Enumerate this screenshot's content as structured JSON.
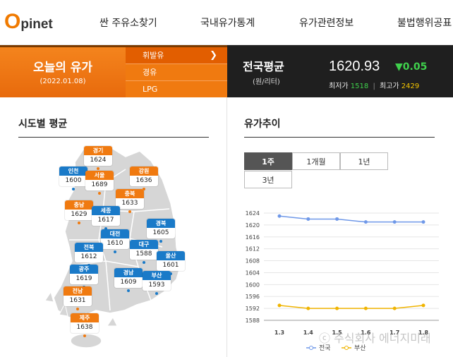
{
  "logo": {
    "o": "O",
    "rest": "pinet"
  },
  "nav": [
    "싼 주유소찾기",
    "국내유가통계",
    "유가관련정보",
    "불법행위공표"
  ],
  "hero": {
    "title": "오늘의 유가",
    "date": "(2022.01.08)",
    "fuel_tabs": [
      "휘발유",
      "경유",
      "LPG"
    ],
    "national_label": "전국평균",
    "national_unit": "(원/리터)",
    "national_price": "1620.93",
    "change": "▼0.05",
    "min_label": "최저가",
    "min_value": "1518",
    "max_label": "최고가",
    "max_value": "2429",
    "separator": "|"
  },
  "regional": {
    "title": "시도별 평균",
    "regions": [
      {
        "name": "경기",
        "value": "1624",
        "style": "o"
      },
      {
        "name": "인천",
        "value": "1600",
        "style": "b"
      },
      {
        "name": "서울",
        "value": "1689",
        "style": "o"
      },
      {
        "name": "강원",
        "value": "1636",
        "style": "o"
      },
      {
        "name": "충북",
        "value": "1633",
        "style": "o"
      },
      {
        "name": "충남",
        "value": "1629",
        "style": "o"
      },
      {
        "name": "세종",
        "value": "1617",
        "style": "b"
      },
      {
        "name": "경북",
        "value": "1605",
        "style": "b"
      },
      {
        "name": "대전",
        "value": "1610",
        "style": "b"
      },
      {
        "name": "전북",
        "value": "1612",
        "style": "b"
      },
      {
        "name": "대구",
        "value": "1588",
        "style": "b"
      },
      {
        "name": "울산",
        "value": "1601",
        "style": "b"
      },
      {
        "name": "광주",
        "value": "1619",
        "style": "b"
      },
      {
        "name": "경남",
        "value": "1609",
        "style": "b"
      },
      {
        "name": "부산",
        "value": "1593",
        "style": "b"
      },
      {
        "name": "전남",
        "value": "1631",
        "style": "o"
      },
      {
        "name": "제주",
        "value": "1638",
        "style": "o"
      }
    ]
  },
  "trend": {
    "title": "유가추이",
    "periods": [
      "1주",
      "1개월",
      "1년",
      "3년"
    ],
    "active_period": "1주"
  },
  "chart_data": {
    "type": "line",
    "x": [
      "1.3",
      "1.4",
      "1.5",
      "1.6",
      "1.7",
      "1.8"
    ],
    "x_tick_labels": [
      "1.3",
      "1.4",
      "1.5",
      "1.6",
      "1.7",
      "1.8"
    ],
    "y_ticks": [
      1588,
      1592,
      1596,
      1600,
      1604,
      1608,
      1612,
      1616,
      1620,
      1624
    ],
    "ylim": [
      1588,
      1624
    ],
    "series": [
      {
        "name": "전국",
        "color": "#6f98e8",
        "values": [
          1623,
          1622,
          1622,
          1621,
          1621,
          1621
        ]
      },
      {
        "name": "부산",
        "color": "#f0b400",
        "values": [
          1593,
          1592,
          1592,
          1592,
          1592,
          1593
        ]
      }
    ],
    "legend_position": "bottom"
  },
  "watermark": "ⓒ 주식회사 에너지미래"
}
